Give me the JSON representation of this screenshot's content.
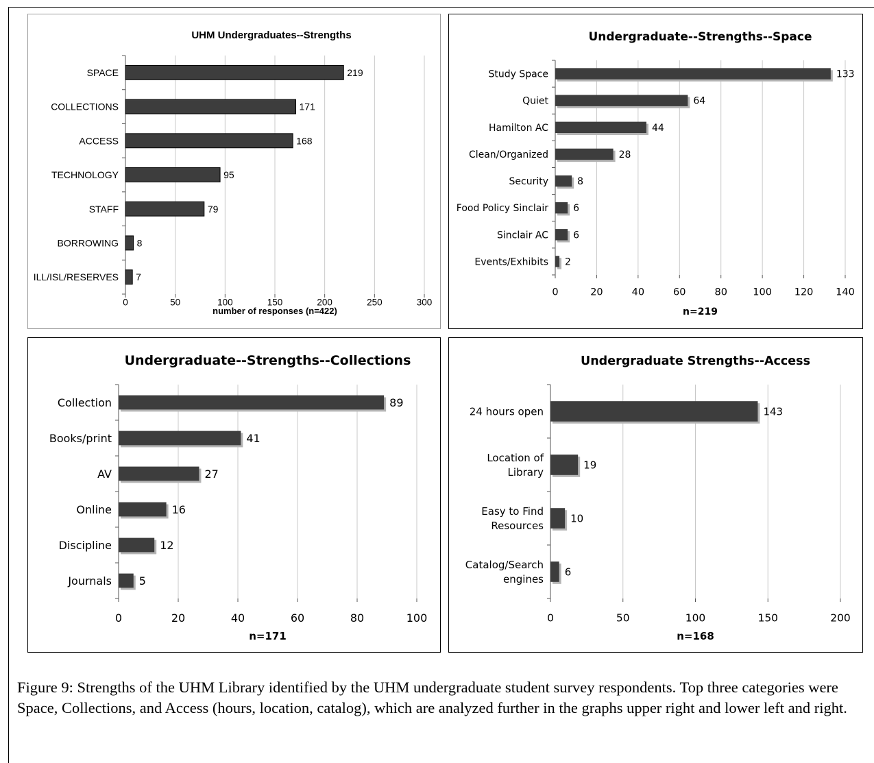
{
  "chart_data": [
    {
      "type": "bar",
      "orientation": "horizontal",
      "title": "UHM Undergraduates--Strengths",
      "xlabel": "number of responses (n=422)",
      "categories": [
        "SPACE",
        "COLLECTIONS",
        "ACCESS",
        "TECHNOLOGY",
        "STAFF",
        "BORROWING",
        "ILL/ISL/RESERVES"
      ],
      "values": [
        219,
        171,
        168,
        95,
        79,
        8,
        7
      ],
      "xlim": [
        0,
        300
      ],
      "xticks": [
        0,
        50,
        100,
        150,
        200,
        250,
        300
      ],
      "grid": true
    },
    {
      "type": "bar",
      "orientation": "horizontal",
      "title": "Undergraduate--Strengths--Space",
      "xlabel": "n=219",
      "categories": [
        "Study Space",
        "Quiet",
        "Hamilton AC",
        "Clean/Organized",
        "Security",
        "Food Policy Sinclair",
        "Sinclair AC",
        "Events/Exhibits"
      ],
      "values": [
        133,
        64,
        44,
        28,
        8,
        6,
        6,
        2
      ],
      "xlim": [
        0,
        140
      ],
      "xticks": [
        0,
        20,
        40,
        60,
        80,
        100,
        120,
        140
      ],
      "grid": true
    },
    {
      "type": "bar",
      "orientation": "horizontal",
      "title": "Undergraduate--Strengths--Collections",
      "xlabel": "n=171",
      "categories": [
        "Collection",
        "Books/print",
        "AV",
        "Online",
        "Discipline",
        "Journals"
      ],
      "values": [
        89,
        41,
        27,
        16,
        12,
        5
      ],
      "xlim": [
        0,
        100
      ],
      "xticks": [
        0,
        20,
        40,
        60,
        80,
        100
      ],
      "grid": true
    },
    {
      "type": "bar",
      "orientation": "horizontal",
      "title": "Undergraduate Strengths--Access",
      "xlabel": "n=168",
      "categories": [
        [
          "24 hours open"
        ],
        [
          "Location of",
          "Library"
        ],
        [
          "Easy to Find",
          "Resources"
        ],
        [
          "Catalog/Search",
          "engines"
        ]
      ],
      "values": [
        143,
        19,
        10,
        6
      ],
      "xlim": [
        0,
        200
      ],
      "xticks": [
        0,
        50,
        100,
        150,
        200
      ],
      "grid": true
    }
  ],
  "colors": {
    "bar": "#3d3d3d",
    "shadow": "#b4b4b4",
    "grid": "#c8c8c8",
    "axis": "#555555"
  },
  "caption": "Figure 9: Strengths of the UHM Library identified by the UHM undergraduate student survey respondents. Top three categories were Space, Collections, and Access (hours, location, catalog), which are analyzed further in the graphs upper right and lower left and right."
}
